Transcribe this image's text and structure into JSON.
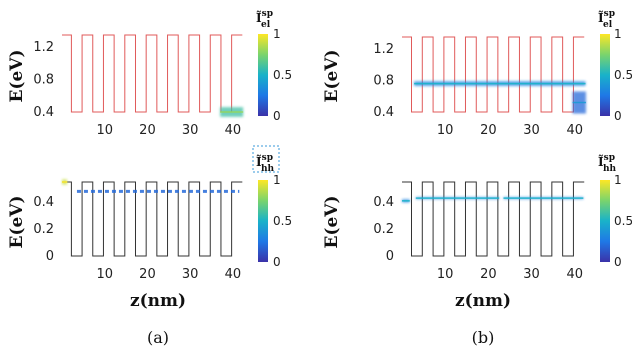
{
  "subcaptions": [
    "(a)",
    "(b)"
  ],
  "panel_ylabel": "E(eV)",
  "panel_xlabel": "z(nm)",
  "colorbar": {
    "el_label": "Ĩ",
    "el_sup": "sp",
    "el_sub": "el",
    "hh_label": "Ĩ",
    "hh_sup": "sp",
    "hh_sub": "hh",
    "ticks": [
      "0",
      "0.5",
      "1"
    ],
    "colors": [
      "#3b32a8",
      "#1f78e6",
      "#19b2c9",
      "#7bd46c",
      "#fde725"
    ]
  },
  "chart_data": [
    {
      "id": "a-top",
      "type": "line",
      "profile": "conduction-band",
      "line_color": "#e05a5a",
      "xlim": [
        0,
        44
      ],
      "ylim": [
        0.4,
        1.35
      ],
      "xticks": [
        "10",
        "20",
        "30",
        "40"
      ],
      "yticks": [
        "0.4",
        "0.8",
        "1.2"
      ],
      "well_low": 0.4,
      "barrier_high": 1.35,
      "edges": [
        0,
        2.2,
        4.7,
        7.2,
        9.7,
        12.2,
        14.7,
        17.2,
        19.7,
        22.2,
        24.7,
        27.2,
        29.7,
        32.2,
        34.7,
        37.2,
        39.7,
        42.2
      ],
      "states": [
        {
          "x_start": 37,
          "x_end": 42.4,
          "y": 0.4,
          "y_spread": 0.06,
          "intensity": 0.6
        }
      ]
    },
    {
      "id": "a-bottom",
      "type": "line",
      "profile": "valence-band",
      "line_color": "#333333",
      "xlim": [
        0,
        44
      ],
      "ylim": [
        0,
        0.55
      ],
      "xticks": [
        "10",
        "20",
        "30",
        "40"
      ],
      "yticks": [
        "0",
        "0.2",
        "0.4"
      ],
      "well_low": 0,
      "barrier_high": 0.55,
      "edges": [
        0,
        2.2,
        4.7,
        7.2,
        9.7,
        12.2,
        14.7,
        17.2,
        19.7,
        22.2,
        24.7,
        27.2,
        29.7,
        32.2,
        34.7,
        37.2,
        39.7,
        42.2
      ],
      "states": [
        {
          "x_start": 0,
          "x_end": 1.2,
          "y": 0.55,
          "y_spread": 0.02,
          "intensity": 0.9
        },
        {
          "x_start": 3.5,
          "x_end": 41.5,
          "y": 0.48,
          "y_spread": 0.005,
          "intensity": 0.2,
          "dashed": true
        }
      ]
    },
    {
      "id": "b-top",
      "type": "line",
      "profile": "conduction-band",
      "line_color": "#e05a5a",
      "xlim": [
        0,
        44
      ],
      "ylim": [
        0.4,
        1.35
      ],
      "xticks": [
        "10",
        "20",
        "30",
        "40"
      ],
      "yticks": [
        "0.4",
        "0.8",
        "1.2"
      ],
      "well_low": 0.4,
      "barrier_high": 1.35,
      "edges": [
        0,
        2.2,
        4.7,
        7.2,
        9.7,
        12.2,
        14.7,
        17.2,
        19.7,
        22.2,
        24.7,
        27.2,
        29.7,
        32.2,
        34.7,
        37.2,
        39.7,
        42.2
      ],
      "states": [
        {
          "x_start": 2.8,
          "x_end": 42.5,
          "y": 0.76,
          "y_spread": 0.03,
          "intensity": 0.3
        },
        {
          "x_start": 39.5,
          "x_end": 42.6,
          "y": 0.52,
          "y_spread": 0.14,
          "intensity": 0.2
        }
      ]
    },
    {
      "id": "b-bottom",
      "type": "line",
      "profile": "valence-band",
      "line_color": "#333333",
      "xlim": [
        0,
        44
      ],
      "ylim": [
        0,
        0.55
      ],
      "xticks": [
        "10",
        "20",
        "30",
        "40"
      ],
      "yticks": [
        "0",
        "0.2",
        "0.4"
      ],
      "well_low": 0,
      "barrier_high": 0.55,
      "edges": [
        0,
        2.2,
        4.7,
        7.2,
        9.7,
        12.2,
        14.7,
        17.2,
        19.7,
        22.2,
        24.7,
        27.2,
        29.7,
        32.2,
        34.7,
        37.2,
        39.7,
        42.2
      ],
      "states": [
        {
          "x_start": 0,
          "x_end": 1.8,
          "y": 0.41,
          "y_spread": 0.012,
          "intensity": 0.3
        },
        {
          "x_start": 3.2,
          "x_end": 22.5,
          "y": 0.43,
          "y_spread": 0.006,
          "intensity": 0.3
        },
        {
          "x_start": 23.5,
          "x_end": 42.0,
          "y": 0.43,
          "y_spread": 0.006,
          "intensity": 0.3
        }
      ]
    }
  ]
}
